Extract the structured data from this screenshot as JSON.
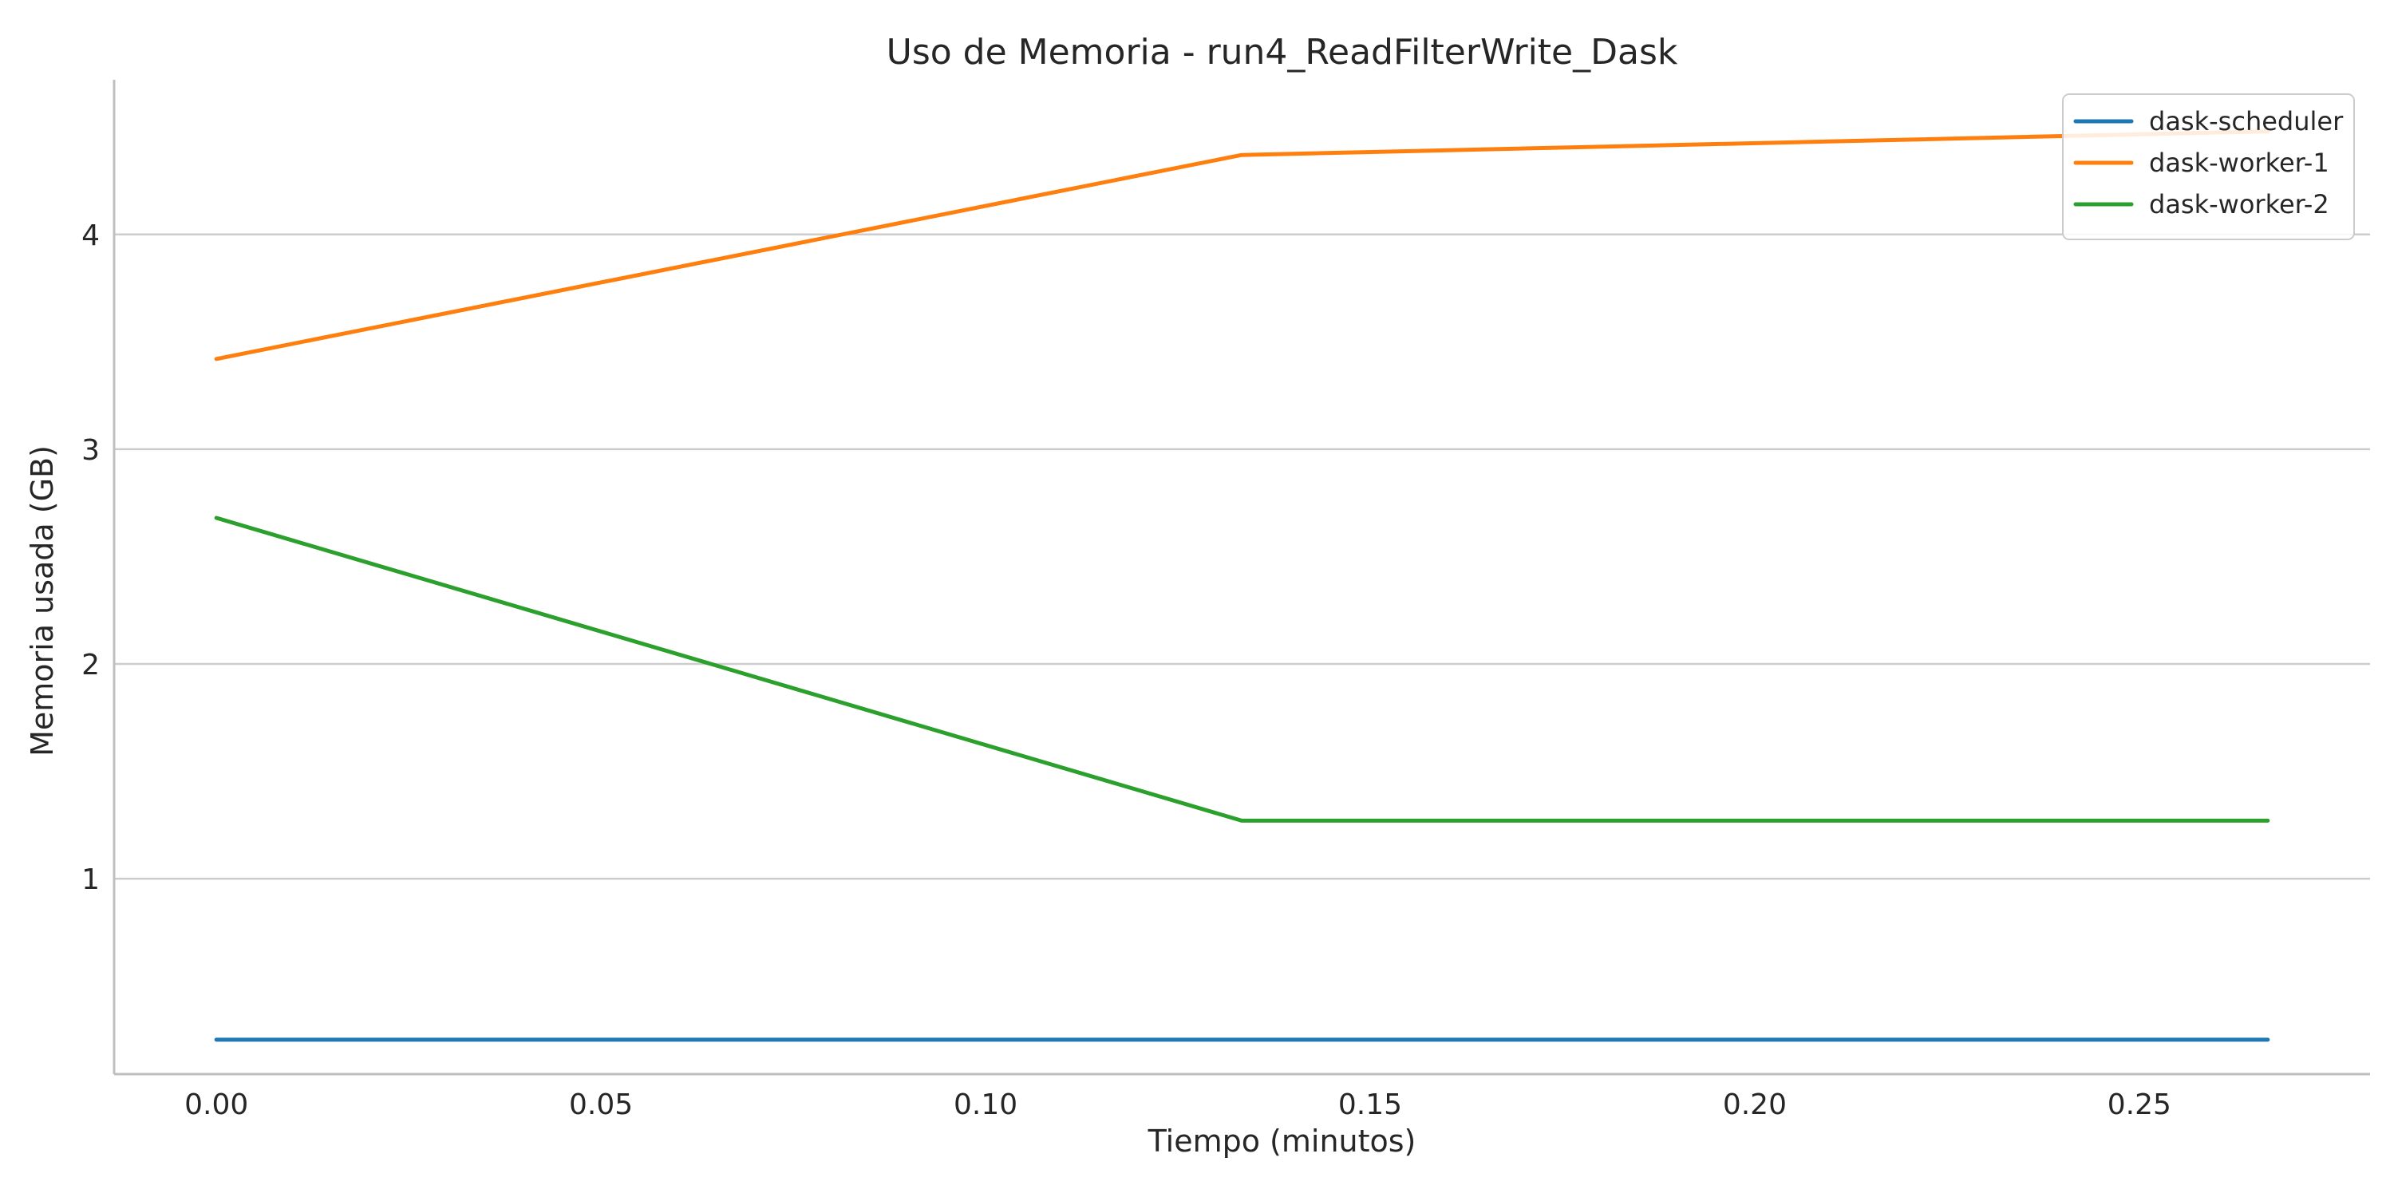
{
  "chart_data": {
    "type": "line",
    "title": "Uso de Memoria - run4_ReadFilterWrite_Dask",
    "xlabel": "Tiempo (minutos)",
    "ylabel": "Memoria usada (GB)",
    "xlim": [
      -0.0133,
      0.28
    ],
    "ylim": [
      0.09,
      4.72
    ],
    "x_ticks": [
      0.0,
      0.05,
      0.1,
      0.15,
      0.2,
      0.25
    ],
    "x_tick_labels": [
      "0.00",
      "0.05",
      "0.10",
      "0.15",
      "0.20",
      "0.25"
    ],
    "y_ticks": [
      1,
      2,
      3,
      4
    ],
    "y_tick_labels": [
      "1",
      "2",
      "3",
      "4"
    ],
    "grid": "horizontal",
    "legend_position": "top-right",
    "series": [
      {
        "name": "dask-scheduler",
        "color": "#1f77b4",
        "x": [
          0.0,
          0.1333,
          0.2667
        ],
        "y": [
          0.25,
          0.25,
          0.25
        ]
      },
      {
        "name": "dask-worker-1",
        "color": "#ff7f0e",
        "x": [
          0.0,
          0.1333,
          0.2667
        ],
        "y": [
          3.42,
          4.37,
          4.48
        ]
      },
      {
        "name": "dask-worker-2",
        "color": "#2ca02c",
        "x": [
          0.0,
          0.1333,
          0.2667
        ],
        "y": [
          2.68,
          1.27,
          1.27
        ]
      }
    ]
  }
}
